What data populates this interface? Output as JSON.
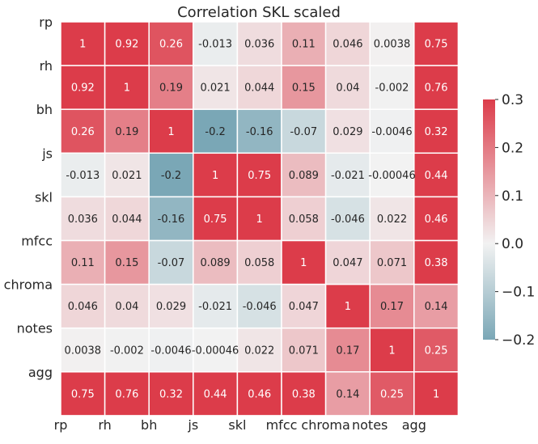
{
  "chart_data": {
    "type": "heatmap",
    "title": "Correlation SKL scaled",
    "row_labels": [
      "rp",
      "rh",
      "bh",
      "js",
      "skl",
      "mfcc",
      "chroma",
      "notes",
      "agg"
    ],
    "col_labels": [
      "rp",
      "rh",
      "bh",
      "js",
      "skl",
      "mfcc",
      "chroma",
      "notes",
      "agg"
    ],
    "values": [
      [
        1,
        0.92,
        0.26,
        -0.013,
        0.036,
        0.11,
        0.046,
        0.0038,
        0.75
      ],
      [
        0.92,
        1,
        0.19,
        0.021,
        0.044,
        0.15,
        0.04,
        -0.002,
        0.76
      ],
      [
        0.26,
        0.19,
        1,
        -0.2,
        -0.16,
        -0.07,
        0.029,
        -0.0046,
        0.32
      ],
      [
        -0.013,
        0.021,
        -0.2,
        1,
        0.75,
        0.089,
        -0.021,
        -0.00046,
        0.44
      ],
      [
        0.036,
        0.044,
        -0.16,
        0.75,
        1,
        0.058,
        -0.046,
        0.022,
        0.46
      ],
      [
        0.11,
        0.15,
        -0.07,
        0.089,
        0.058,
        1,
        0.047,
        0.071,
        0.38
      ],
      [
        0.046,
        0.04,
        0.029,
        -0.021,
        -0.046,
        0.047,
        1,
        0.17,
        0.14
      ],
      [
        0.0038,
        -0.002,
        -0.0046,
        -0.00046,
        0.022,
        0.071,
        0.17,
        1,
        0.25
      ],
      [
        0.75,
        0.76,
        0.32,
        0.44,
        0.46,
        0.38,
        0.14,
        0.25,
        1
      ]
    ],
    "cell_text": [
      [
        "1",
        "0.92",
        "0.26",
        "-0.013",
        "0.036",
        "0.11",
        "0.046",
        "0.0038",
        "0.75"
      ],
      [
        "0.92",
        "1",
        "0.19",
        "0.021",
        "0.044",
        "0.15",
        "0.04",
        "-0.002",
        "0.76"
      ],
      [
        "0.26",
        "0.19",
        "1",
        "-0.2",
        "-0.16",
        "-0.07",
        "0.029",
        "-0.0046",
        "0.32"
      ],
      [
        "-0.013",
        "0.021",
        "-0.2",
        "1",
        "0.75",
        "0.089",
        "-0.021",
        "-0.00046",
        "0.44"
      ],
      [
        "0.036",
        "0.044",
        "-0.16",
        "0.75",
        "1",
        "0.058",
        "-0.046",
        "0.022",
        "0.46"
      ],
      [
        "0.11",
        "0.15",
        "-0.07",
        "0.089",
        "0.058",
        "1",
        "0.047",
        "0.071",
        "0.38"
      ],
      [
        "0.046",
        "0.04",
        "0.029",
        "-0.021",
        "-0.046",
        "0.047",
        "1",
        "0.17",
        "0.14"
      ],
      [
        "0.0038",
        "-0.002",
        "-0.0046",
        "-0.00046",
        "0.022",
        "0.071",
        "0.17",
        "1",
        "0.25"
      ],
      [
        "0.75",
        "0.76",
        "0.32",
        "0.44",
        "0.46",
        "0.38",
        "0.14",
        "0.25",
        "1"
      ]
    ],
    "color_range": [
      -0.2,
      0.3
    ],
    "colormap": {
      "low": "#7aa7b6",
      "mid": "#f2f2f2",
      "high": "#dc3c4a"
    },
    "colorbar": {
      "ticks": [
        0.3,
        0.2,
        0.1,
        0.0,
        -0.1,
        -0.2
      ],
      "tick_labels": [
        "0.3",
        "0.2",
        "0.1",
        "0.0",
        "−0.1",
        "−0.2"
      ],
      "placement": "right"
    },
    "grid": true
  }
}
